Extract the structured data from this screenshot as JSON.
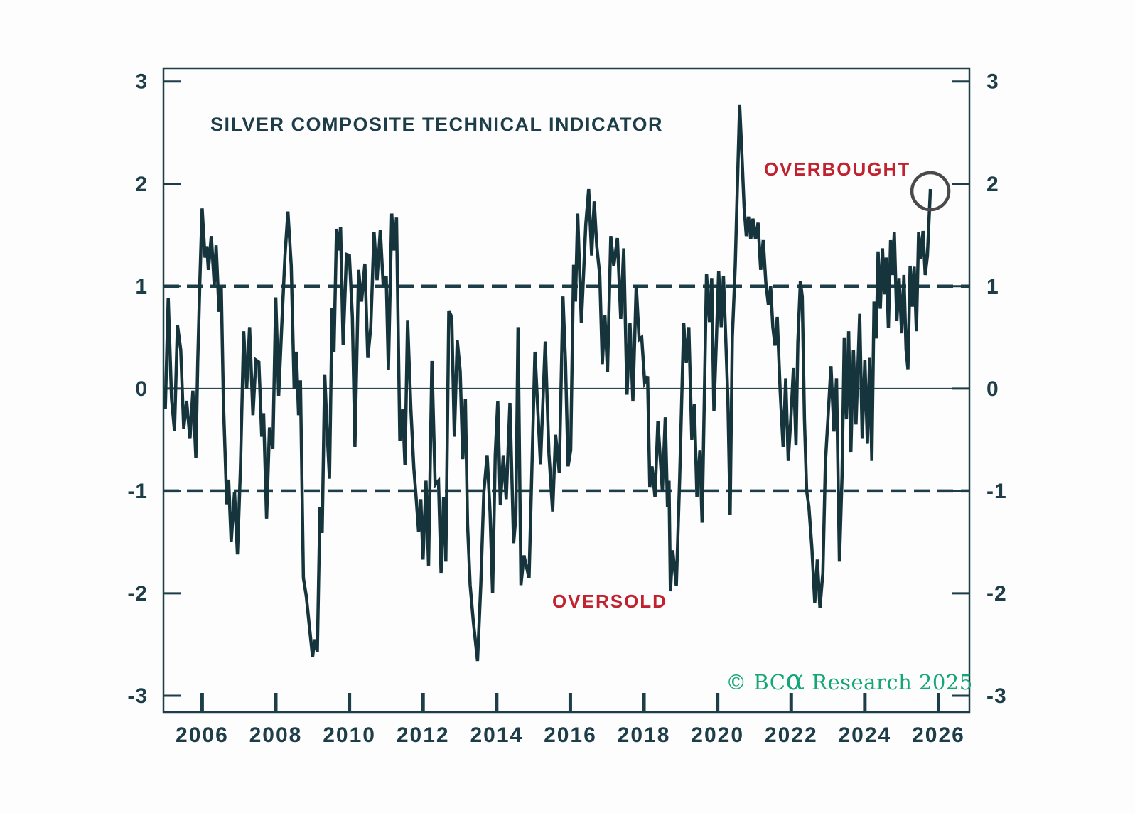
{
  "title": "SILVER COMPOSITE TECHNICAL INDICATOR",
  "annotations": {
    "overbought": "OVERBOUGHT",
    "oversold": "OVERSOLD"
  },
  "copyright_parts": {
    "prefix": "© BC",
    "alpha": "α",
    "suffix": " Research 2025"
  },
  "colors": {
    "line": "#16343c",
    "axis": "#1d3e48",
    "tick_label": "#1d3e48",
    "reference_dashed": "#1d3e48",
    "zero_line": "#2a4850",
    "annotation_red": "#c0232f",
    "copyright_green": "#15a678",
    "highlight_circle_gray": "#4a4a4a",
    "background": "#fdfdfd"
  },
  "chart_data": {
    "type": "line",
    "title": "SILVER COMPOSITE TECHNICAL INDICATOR",
    "xlabel": "",
    "ylabel": "",
    "grid": false,
    "legend": false,
    "xlim": [
      2004.95,
      2026.84
    ],
    "ylim": [
      -3.16,
      3.13
    ],
    "x_ticks": [
      2006,
      2008,
      2010,
      2012,
      2014,
      2016,
      2018,
      2020,
      2022,
      2024,
      2026
    ],
    "y_ticks": [
      3,
      2,
      1,
      0,
      -1,
      -2,
      -3
    ],
    "y_axis_both_sides": true,
    "reference_lines": {
      "overbought_level": 1,
      "oversold_level": -1,
      "zero_level": 0
    },
    "last_point_circled": true,
    "series": [
      {
        "name": "Silver composite technical indicator",
        "points": [
          [
            2005.0,
            -0.2
          ],
          [
            2005.08,
            0.88
          ],
          [
            2005.17,
            -0.1
          ],
          [
            2005.25,
            -0.41
          ],
          [
            2005.33,
            0.62
          ],
          [
            2005.42,
            0.38
          ],
          [
            2005.5,
            -0.39
          ],
          [
            2005.58,
            -0.12
          ],
          [
            2005.67,
            -0.49
          ],
          [
            2005.75,
            -0.02
          ],
          [
            2005.83,
            -0.68
          ],
          [
            2005.88,
            0.25
          ],
          [
            2005.94,
            1.07
          ],
          [
            2006.0,
            1.76
          ],
          [
            2006.08,
            1.28
          ],
          [
            2006.13,
            1.39
          ],
          [
            2006.17,
            1.16
          ],
          [
            2006.25,
            1.49
          ],
          [
            2006.33,
            1.01
          ],
          [
            2006.38,
            1.4
          ],
          [
            2006.46,
            0.75
          ],
          [
            2006.52,
            1.0
          ],
          [
            2006.58,
            -0.14
          ],
          [
            2006.67,
            -1.13
          ],
          [
            2006.72,
            -0.89
          ],
          [
            2006.79,
            -1.5
          ],
          [
            2006.88,
            -1.01
          ],
          [
            2006.96,
            -1.62
          ],
          [
            2007.04,
            -0.78
          ],
          [
            2007.13,
            0.56
          ],
          [
            2007.21,
            0.0
          ],
          [
            2007.29,
            0.6
          ],
          [
            2007.38,
            -0.26
          ],
          [
            2007.46,
            0.28
          ],
          [
            2007.54,
            0.26
          ],
          [
            2007.62,
            -0.47
          ],
          [
            2007.67,
            -0.24
          ],
          [
            2007.75,
            -1.27
          ],
          [
            2007.83,
            -0.38
          ],
          [
            2007.92,
            -0.59
          ],
          [
            2008.0,
            0.89
          ],
          [
            2008.08,
            -0.07
          ],
          [
            2008.17,
            0.67
          ],
          [
            2008.25,
            1.3
          ],
          [
            2008.33,
            1.73
          ],
          [
            2008.42,
            1.2
          ],
          [
            2008.5,
            0.0
          ],
          [
            2008.56,
            0.36
          ],
          [
            2008.62,
            -0.26
          ],
          [
            2008.67,
            0.08
          ],
          [
            2008.75,
            -1.85
          ],
          [
            2008.83,
            -2.03
          ],
          [
            2008.92,
            -2.35
          ],
          [
            2009.0,
            -2.62
          ],
          [
            2009.06,
            -2.45
          ],
          [
            2009.13,
            -2.57
          ],
          [
            2009.2,
            -1.16
          ],
          [
            2009.26,
            -1.41
          ],
          [
            2009.33,
            0.14
          ],
          [
            2009.4,
            -0.45
          ],
          [
            2009.46,
            -0.88
          ],
          [
            2009.53,
            0.79
          ],
          [
            2009.58,
            0.36
          ],
          [
            2009.65,
            1.56
          ],
          [
            2009.7,
            1.35
          ],
          [
            2009.76,
            1.58
          ],
          [
            2009.83,
            0.43
          ],
          [
            2009.92,
            1.31
          ],
          [
            2010.0,
            1.3
          ],
          [
            2010.08,
            0.7
          ],
          [
            2010.15,
            -0.57
          ],
          [
            2010.25,
            1.16
          ],
          [
            2010.33,
            0.85
          ],
          [
            2010.42,
            1.22
          ],
          [
            2010.5,
            0.3
          ],
          [
            2010.58,
            0.6
          ],
          [
            2010.67,
            1.53
          ],
          [
            2010.75,
            1.06
          ],
          [
            2010.84,
            1.55
          ],
          [
            2010.92,
            1.0
          ],
          [
            2011.0,
            1.1
          ],
          [
            2011.06,
            0.18
          ],
          [
            2011.15,
            1.71
          ],
          [
            2011.21,
            1.35
          ],
          [
            2011.28,
            1.67
          ],
          [
            2011.37,
            -0.51
          ],
          [
            2011.45,
            -0.2
          ],
          [
            2011.51,
            -0.75
          ],
          [
            2011.58,
            0.67
          ],
          [
            2011.67,
            -0.2
          ],
          [
            2011.75,
            -0.78
          ],
          [
            2011.82,
            -1.1
          ],
          [
            2011.88,
            -1.4
          ],
          [
            2011.94,
            -1.08
          ],
          [
            2012.0,
            -1.67
          ],
          [
            2012.08,
            -0.9
          ],
          [
            2012.15,
            -1.73
          ],
          [
            2012.24,
            0.27
          ],
          [
            2012.33,
            -0.94
          ],
          [
            2012.42,
            -0.9
          ],
          [
            2012.49,
            -1.8
          ],
          [
            2012.56,
            -1.06
          ],
          [
            2012.62,
            -1.69
          ],
          [
            2012.7,
            0.76
          ],
          [
            2012.78,
            0.7
          ],
          [
            2012.85,
            -0.47
          ],
          [
            2012.93,
            0.47
          ],
          [
            2013.01,
            0.17
          ],
          [
            2013.08,
            -0.69
          ],
          [
            2013.15,
            -0.1
          ],
          [
            2013.21,
            -1.33
          ],
          [
            2013.28,
            -1.92
          ],
          [
            2013.37,
            -2.29
          ],
          [
            2013.48,
            -2.66
          ],
          [
            2013.57,
            -1.9
          ],
          [
            2013.65,
            -1.02
          ],
          [
            2013.74,
            -0.65
          ],
          [
            2013.82,
            -1.2
          ],
          [
            2013.89,
            -2.0
          ],
          [
            2013.96,
            -0.65
          ],
          [
            2014.03,
            -0.12
          ],
          [
            2014.1,
            -1.14
          ],
          [
            2014.18,
            -0.65
          ],
          [
            2014.26,
            -1.08
          ],
          [
            2014.36,
            -0.14
          ],
          [
            2014.46,
            -1.51
          ],
          [
            2014.52,
            -1.25
          ],
          [
            2014.58,
            0.6
          ],
          [
            2014.66,
            -1.92
          ],
          [
            2014.74,
            -1.63
          ],
          [
            2014.88,
            -1.85
          ],
          [
            2015.04,
            0.36
          ],
          [
            2015.19,
            -0.74
          ],
          [
            2015.32,
            0.46
          ],
          [
            2015.42,
            -0.64
          ],
          [
            2015.52,
            -1.2
          ],
          [
            2015.6,
            -0.45
          ],
          [
            2015.7,
            -0.82
          ],
          [
            2015.8,
            0.9
          ],
          [
            2015.87,
            0.25
          ],
          [
            2015.94,
            -0.76
          ],
          [
            2016.01,
            -0.6
          ],
          [
            2016.09,
            1.21
          ],
          [
            2016.14,
            0.85
          ],
          [
            2016.2,
            1.71
          ],
          [
            2016.3,
            0.64
          ],
          [
            2016.42,
            1.6
          ],
          [
            2016.5,
            1.95
          ],
          [
            2016.58,
            1.3
          ],
          [
            2016.65,
            1.83
          ],
          [
            2016.72,
            1.39
          ],
          [
            2016.8,
            1.11
          ],
          [
            2016.87,
            0.24
          ],
          [
            2016.94,
            0.72
          ],
          [
            2017.01,
            0.16
          ],
          [
            2017.1,
            1.49
          ],
          [
            2017.18,
            1.2
          ],
          [
            2017.28,
            1.47
          ],
          [
            2017.37,
            0.68
          ],
          [
            2017.45,
            1.37
          ],
          [
            2017.54,
            -0.06
          ],
          [
            2017.62,
            0.64
          ],
          [
            2017.7,
            -0.12
          ],
          [
            2017.79,
            1.01
          ],
          [
            2017.87,
            0.48
          ],
          [
            2017.94,
            0.5
          ],
          [
            2018.02,
            0.06
          ],
          [
            2018.1,
            0.12
          ],
          [
            2018.16,
            -0.96
          ],
          [
            2018.22,
            -0.76
          ],
          [
            2018.3,
            -1.06
          ],
          [
            2018.38,
            -0.32
          ],
          [
            2018.44,
            -0.66
          ],
          [
            2018.5,
            -1.0
          ],
          [
            2018.58,
            -0.28
          ],
          [
            2018.64,
            -1.16
          ],
          [
            2018.68,
            -0.9
          ],
          [
            2018.72,
            -1.98
          ],
          [
            2018.78,
            -1.58
          ],
          [
            2018.88,
            -1.93
          ],
          [
            2018.97,
            -0.88
          ],
          [
            2019.08,
            0.64
          ],
          [
            2019.15,
            0.25
          ],
          [
            2019.22,
            0.6
          ],
          [
            2019.3,
            -0.5
          ],
          [
            2019.37,
            -0.15
          ],
          [
            2019.44,
            -1.06
          ],
          [
            2019.52,
            -0.6
          ],
          [
            2019.58,
            -1.31
          ],
          [
            2019.64,
            -0.1
          ],
          [
            2019.7,
            1.12
          ],
          [
            2019.78,
            0.65
          ],
          [
            2019.84,
            1.08
          ],
          [
            2019.9,
            -0.22
          ],
          [
            2019.96,
            0.4
          ],
          [
            2020.03,
            1.15
          ],
          [
            2020.1,
            0.6
          ],
          [
            2020.16,
            1.1
          ],
          [
            2020.22,
            0.5
          ],
          [
            2020.28,
            -0.12
          ],
          [
            2020.34,
            -1.23
          ],
          [
            2020.4,
            0.5
          ],
          [
            2020.48,
            1.2
          ],
          [
            2020.54,
            2.0
          ],
          [
            2020.6,
            2.77
          ],
          [
            2020.66,
            2.3
          ],
          [
            2020.72,
            1.77
          ],
          [
            2020.78,
            1.49
          ],
          [
            2020.84,
            1.68
          ],
          [
            2020.9,
            1.46
          ],
          [
            2020.96,
            1.66
          ],
          [
            2021.03,
            1.46
          ],
          [
            2021.1,
            1.62
          ],
          [
            2021.17,
            1.16
          ],
          [
            2021.24,
            1.45
          ],
          [
            2021.31,
            1.04
          ],
          [
            2021.38,
            0.82
          ],
          [
            2021.44,
            1.0
          ],
          [
            2021.5,
            0.6
          ],
          [
            2021.56,
            0.42
          ],
          [
            2021.62,
            0.7
          ],
          [
            2021.7,
            -0.02
          ],
          [
            2021.78,
            -0.57
          ],
          [
            2021.85,
            0.1
          ],
          [
            2021.92,
            -0.7
          ],
          [
            2021.99,
            -0.3
          ],
          [
            2022.06,
            0.2
          ],
          [
            2022.13,
            -0.55
          ],
          [
            2022.18,
            0.45
          ],
          [
            2022.25,
            1.05
          ],
          [
            2022.3,
            0.9
          ],
          [
            2022.36,
            -0.3
          ],
          [
            2022.42,
            -1.0
          ],
          [
            2022.48,
            -1.15
          ],
          [
            2022.56,
            -1.55
          ],
          [
            2022.64,
            -2.09
          ],
          [
            2022.71,
            -1.67
          ],
          [
            2022.78,
            -2.14
          ],
          [
            2022.86,
            -1.8
          ],
          [
            2022.93,
            -0.72
          ],
          [
            2023.08,
            0.22
          ],
          [
            2023.16,
            -0.42
          ],
          [
            2023.23,
            0.1
          ],
          [
            2023.31,
            -1.69
          ],
          [
            2023.38,
            -0.85
          ],
          [
            2023.44,
            0.5
          ],
          [
            2023.5,
            -0.3
          ],
          [
            2023.56,
            0.56
          ],
          [
            2023.62,
            -0.62
          ],
          [
            2023.69,
            0.38
          ],
          [
            2023.76,
            -0.35
          ],
          [
            2023.86,
            0.73
          ],
          [
            2023.93,
            -0.49
          ],
          [
            2024.0,
            0.28
          ],
          [
            2024.07,
            -0.54
          ],
          [
            2024.13,
            0.3
          ],
          [
            2024.19,
            -0.7
          ],
          [
            2024.25,
            0.85
          ],
          [
            2024.31,
            0.49
          ],
          [
            2024.36,
            1.34
          ],
          [
            2024.42,
            0.78
          ],
          [
            2024.48,
            1.37
          ],
          [
            2024.53,
            0.92
          ],
          [
            2024.58,
            1.28
          ],
          [
            2024.64,
            0.59
          ],
          [
            2024.7,
            1.45
          ],
          [
            2024.75,
            1.11
          ],
          [
            2024.8,
            1.53
          ],
          [
            2024.87,
            0.66
          ],
          [
            2024.93,
            1.08
          ],
          [
            2025.0,
            0.54
          ],
          [
            2025.06,
            1.11
          ],
          [
            2025.12,
            0.38
          ],
          [
            2025.17,
            0.19
          ],
          [
            2025.23,
            1.2
          ],
          [
            2025.29,
            0.8
          ],
          [
            2025.34,
            1.19
          ],
          [
            2025.4,
            0.56
          ],
          [
            2025.46,
            1.53
          ],
          [
            2025.52,
            1.27
          ],
          [
            2025.58,
            1.54
          ],
          [
            2025.64,
            1.11
          ],
          [
            2025.7,
            1.3
          ],
          [
            2025.78,
            1.95
          ]
        ]
      }
    ]
  }
}
